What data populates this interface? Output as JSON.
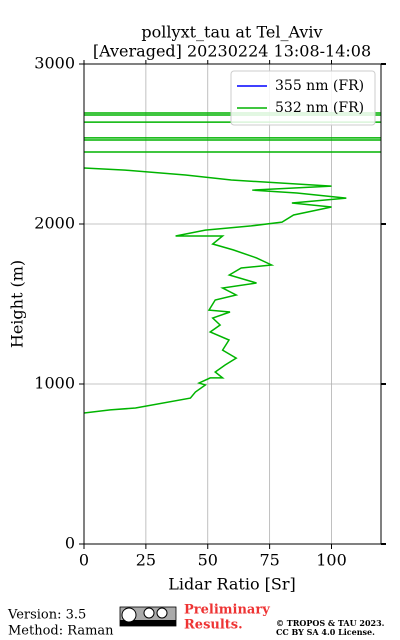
{
  "chart_data": {
    "type": "line",
    "title": [
      "pollyxt_tau at Tel_Aviv",
      "[Averaged] 20230224 13:08-14:08"
    ],
    "x_label": "Lidar Ratio [Sr]",
    "y_label": "Height (m)",
    "xlim": [
      0,
      120
    ],
    "xticks": [
      0,
      25,
      50,
      75,
      100
    ],
    "ylim": [
      0,
      3000
    ],
    "yticks": [
      0,
      1000,
      2000,
      3000
    ],
    "grid": true,
    "legend": "upper right",
    "series": [
      {
        "name": "355 nm (FR)",
        "color": "#0000ff",
        "x": [],
        "y": []
      },
      {
        "name": "532 nm (FR)",
        "color": "#00b400",
        "x": [
          0,
          10.6,
          20.8,
          43,
          45,
          49,
          46.5,
          51,
          56,
          53,
          57,
          61.5,
          56,
          58.6,
          51,
          55,
          52,
          59,
          50.5,
          53,
          61.5,
          56,
          69.7,
          58.7,
          63.5,
          75.8,
          69.7,
          60.3,
          52,
          56,
          37,
          49,
          67.6,
          80,
          84.7,
          100,
          84,
          106,
          86,
          68,
          100,
          59.5,
          41,
          16.7,
          0,
          null,
          0,
          120,
          null,
          0,
          120,
          null,
          0,
          120,
          null,
          0,
          120,
          null,
          0,
          120,
          null,
          0,
          120
        ],
        "y": [
          819,
          838,
          850,
          912,
          950,
          994,
          1006,
          1038,
          1038,
          1075,
          1119,
          1162,
          1212,
          1275,
          1325,
          1369,
          1412,
          1450,
          1462,
          1525,
          1556,
          1600,
          1631,
          1681,
          1725,
          1744,
          1788,
          1838,
          1875,
          1925,
          1925,
          1962,
          1988,
          2012,
          2056,
          2106,
          2131,
          2162,
          2194,
          2212,
          2237,
          2275,
          2306,
          2337,
          2350,
          null,
          2450,
          2450,
          null,
          2525,
          2525,
          null,
          2538,
          2538,
          null,
          2637,
          2637,
          null,
          2681,
          2681,
          null,
          2694,
          2694
        ]
      }
    ]
  },
  "footer": {
    "version": "Version: 3.5",
    "method": "Method: Raman",
    "notice": [
      "Preliminary",
      "Results."
    ],
    "license": [
      "© TROPOS & TAU 2023.",
      "CC BY SA 4.0 License."
    ]
  }
}
